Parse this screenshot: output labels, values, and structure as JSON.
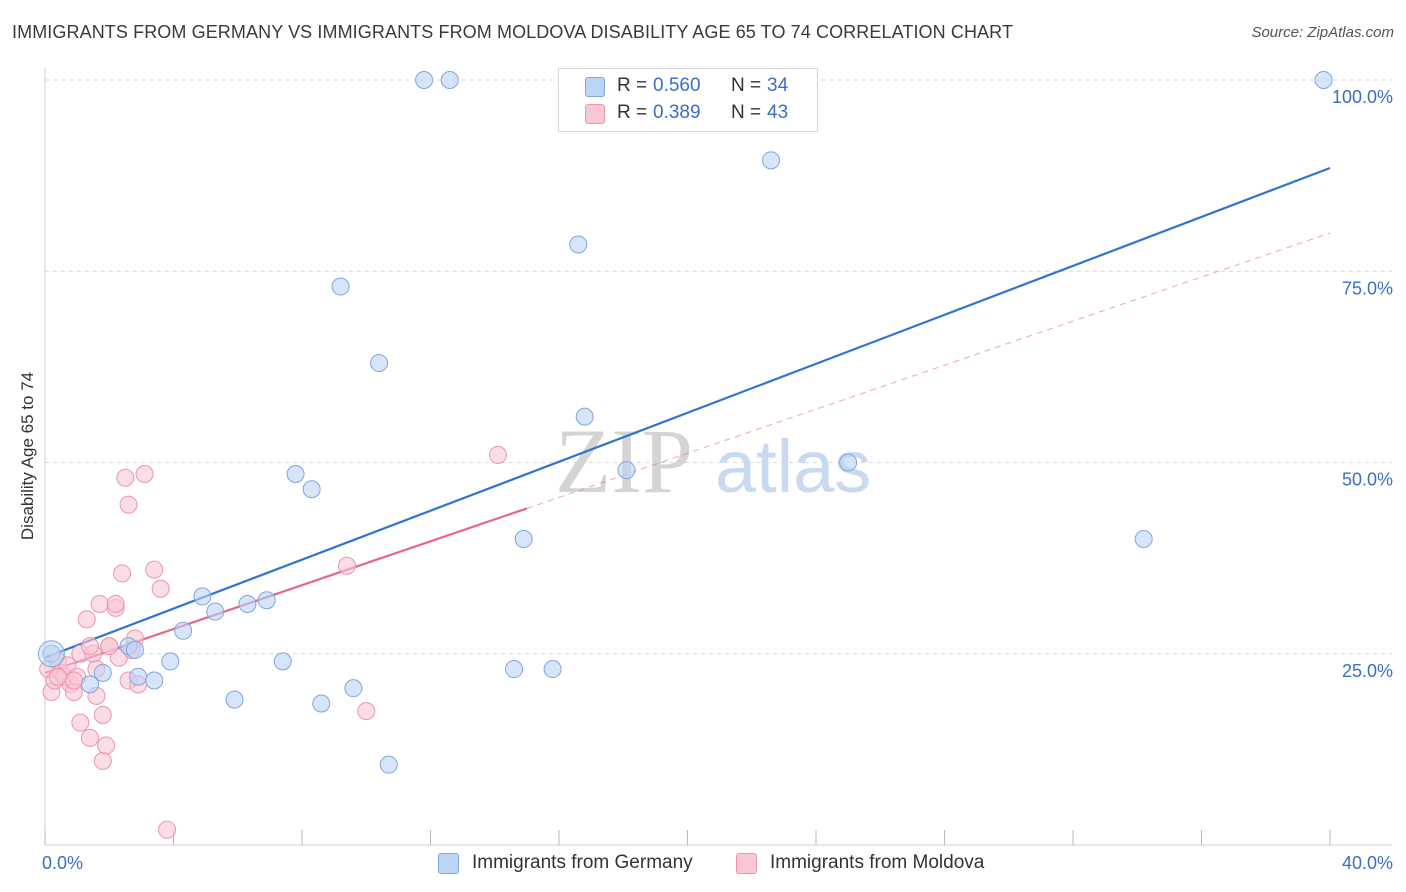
{
  "title": "IMMIGRANTS FROM GERMANY VS IMMIGRANTS FROM MOLDOVA DISABILITY AGE 65 TO 74 CORRELATION CHART",
  "source": "Source: ZipAtlas.com",
  "watermark": {
    "zip": "ZIP",
    "atlas": "atlas"
  },
  "legend_top": {
    "germany": {
      "r_label": "R =",
      "r_value": "0.560",
      "n_label": "N =",
      "n_value": "34"
    },
    "moldova": {
      "r_label": "R =",
      "r_value": "0.389",
      "n_label": "N =",
      "n_value": "43"
    }
  },
  "colors": {
    "germany_fill": "#bcd4f5",
    "germany_stroke": "#7fa6e0",
    "germany_line": "#2e74d0",
    "moldova_fill": "#f9c6d4",
    "moldova_stroke": "#ee94ae",
    "moldova_line": "#e2688f",
    "axis_text": "#3a6fc4",
    "grid": "#d9d9d9"
  },
  "chart_data": {
    "type": "scatter",
    "title": "IMMIGRANTS FROM GERMANY VS IMMIGRANTS FROM MOLDOVA DISABILITY AGE 65 TO 74 CORRELATION CHART",
    "xlabel": "",
    "ylabel": "Disability Age 65 to 74",
    "xlim": [
      0,
      40
    ],
    "ylim": [
      0,
      100
    ],
    "x_tick_labels": [
      "0.0%",
      "40.0%"
    ],
    "y_tick_labels": [
      "25.0%",
      "50.0%",
      "75.0%",
      "100.0%"
    ],
    "y_ticks": [
      25,
      50,
      75,
      100
    ],
    "x_minor_ticks": [
      0,
      4,
      8,
      12,
      16,
      20,
      24,
      28,
      32,
      36,
      40
    ],
    "series": [
      {
        "name": "Immigrants from Germany",
        "r": 0.56,
        "n": 34,
        "trend": {
          "x": [
            0,
            40
          ],
          "y": [
            24.5,
            88.5
          ],
          "dashed_extension": false
        },
        "points": [
          [
            0.2,
            25.0
          ],
          [
            1.4,
            21.0
          ],
          [
            1.8,
            22.5
          ],
          [
            2.6,
            26.0
          ],
          [
            2.9,
            22.0
          ],
          [
            2.8,
            25.5
          ],
          [
            3.4,
            21.5
          ],
          [
            3.9,
            24.0
          ],
          [
            4.3,
            28.0
          ],
          [
            4.9,
            32.5
          ],
          [
            5.3,
            30.5
          ],
          [
            5.9,
            19.0
          ],
          [
            6.3,
            31.5
          ],
          [
            6.9,
            32.0
          ],
          [
            7.4,
            24.0
          ],
          [
            7.8,
            48.5
          ],
          [
            8.3,
            46.5
          ],
          [
            8.6,
            18.5
          ],
          [
            9.2,
            73.0
          ],
          [
            9.6,
            20.5
          ],
          [
            10.4,
            63.0
          ],
          [
            10.7,
            10.5
          ],
          [
            11.8,
            100.0
          ],
          [
            12.6,
            100.0
          ],
          [
            14.6,
            23.0
          ],
          [
            14.9,
            40.0
          ],
          [
            15.8,
            23.0
          ],
          [
            16.6,
            78.5
          ],
          [
            16.8,
            56.0
          ],
          [
            18.1,
            49.0
          ],
          [
            22.6,
            89.5
          ],
          [
            25.0,
            50.0
          ],
          [
            34.2,
            40.0
          ],
          [
            39.8,
            100.0
          ]
        ]
      },
      {
        "name": "Immigrants from Moldova",
        "r": 0.389,
        "n": 43,
        "trend": {
          "x": [
            0,
            15
          ],
          "y": [
            22.5,
            44.0
          ],
          "dashed_extension": {
            "x": [
              15,
              40
            ],
            "y": [
              44.0,
              80.0
            ]
          }
        },
        "points": [
          [
            0.1,
            23.0
          ],
          [
            0.2,
            20.0
          ],
          [
            0.3,
            21.5
          ],
          [
            0.4,
            24.0
          ],
          [
            0.5,
            22.5
          ],
          [
            0.6,
            22.0
          ],
          [
            0.7,
            23.5
          ],
          [
            0.8,
            21.0
          ],
          [
            0.9,
            20.0
          ],
          [
            1.0,
            22.0
          ],
          [
            1.1,
            25.0
          ],
          [
            1.1,
            16.0
          ],
          [
            1.3,
            29.5
          ],
          [
            1.4,
            14.0
          ],
          [
            1.5,
            25.0
          ],
          [
            1.6,
            19.5
          ],
          [
            1.6,
            23.0
          ],
          [
            1.7,
            31.5
          ],
          [
            1.8,
            11.0
          ],
          [
            1.8,
            17.0
          ],
          [
            1.9,
            13.0
          ],
          [
            2.0,
            26.0
          ],
          [
            2.2,
            31.0
          ],
          [
            2.2,
            31.5
          ],
          [
            2.3,
            24.5
          ],
          [
            2.4,
            35.5
          ],
          [
            2.5,
            48.0
          ],
          [
            2.6,
            44.5
          ],
          [
            2.6,
            21.5
          ],
          [
            2.7,
            25.5
          ],
          [
            2.8,
            27.0
          ],
          [
            2.9,
            21.0
          ],
          [
            3.1,
            48.5
          ],
          [
            3.4,
            36.0
          ],
          [
            3.6,
            33.5
          ],
          [
            3.8,
            2.0
          ],
          [
            9.4,
            36.5
          ],
          [
            10.0,
            17.5
          ],
          [
            14.1,
            51.0
          ],
          [
            0.9,
            21.5
          ],
          [
            1.4,
            26.0
          ],
          [
            2.0,
            26.0
          ],
          [
            0.4,
            22.0
          ]
        ]
      }
    ],
    "legend": [
      "Immigrants from Germany",
      "Immigrants from Moldova"
    ]
  }
}
